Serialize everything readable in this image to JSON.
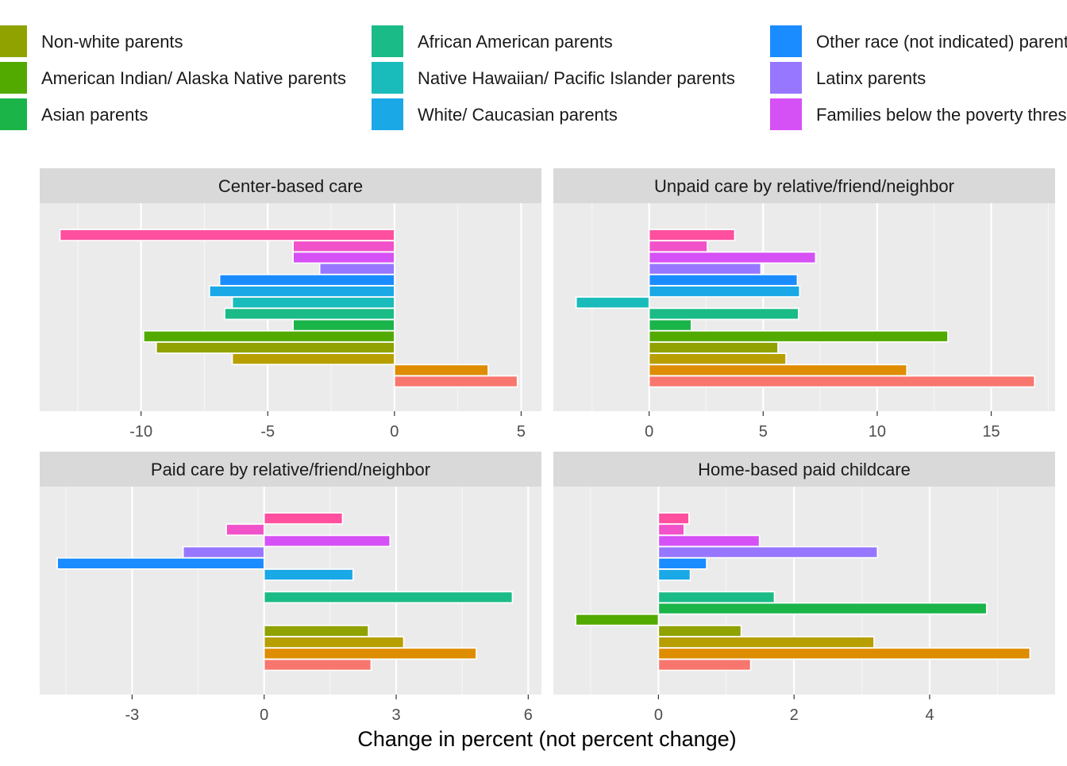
{
  "chart_data": {
    "type": "bar",
    "orientation": "horizontal",
    "xlabel": "Change in percent (not percent change)",
    "ylabel": "",
    "legend": {
      "position": "top",
      "entries": [
        {
          "label": "Non-white parents",
          "color": "#8FA200"
        },
        {
          "label": "American Indian/ Alaska Native parents",
          "color": "#52AA00"
        },
        {
          "label": "Asian parents",
          "color": "#1AB449"
        },
        {
          "label": "African American parents",
          "color": "#1ABB86"
        },
        {
          "label": "Native Hawaiian/ Pacific Islander parents",
          "color": "#1ABBBB"
        },
        {
          "label": "White/ Caucasian parents",
          "color": "#1AA8E7"
        },
        {
          "label": "Other race (not indicated) parents",
          "color": "#1A8CFF"
        },
        {
          "label": "Latinx parents",
          "color": "#9777FF"
        },
        {
          "label": "Families below the poverty threshold",
          "color": "#D651F5"
        }
      ]
    },
    "group_colors": [
      "#F8766D",
      "#DE8C00",
      "#B79F00",
      "#8FA200",
      "#52AA00",
      "#1AB449",
      "#1ABB86",
      "#1ABBBB",
      "#1AA8E7",
      "#1A8CFF",
      "#9777FF",
      "#D651F5",
      "#F151C9",
      "#FF4F9E"
    ],
    "panels": [
      {
        "title": "Center-based care",
        "xlim": [
          -14,
          5.8
        ],
        "ticks": [
          -10,
          -5,
          0,
          5
        ],
        "values": [
          4.85,
          3.7,
          -6.4,
          -9.4,
          -9.9,
          -4.0,
          -6.7,
          -6.4,
          -7.3,
          -6.9,
          -2.95,
          -4.0,
          -4.0,
          -13.2
        ]
      },
      {
        "title": "Unpaid care by relative/friend/neighbor",
        "xlim": [
          -4.2,
          17.8
        ],
        "ticks": [
          0,
          5,
          10,
          15
        ],
        "values": [
          16.9,
          11.3,
          6.0,
          5.65,
          13.1,
          1.85,
          6.55,
          -3.2,
          6.6,
          6.5,
          4.9,
          7.3,
          2.55,
          3.75
        ]
      },
      {
        "title": "Paid care by relative/friend/neighbor",
        "xlim": [
          -5.1,
          6.3
        ],
        "ticks": [
          -3,
          0,
          3,
          6
        ],
        "values": [
          2.43,
          4.82,
          3.17,
          2.37,
          0.0,
          0.0,
          5.64,
          0.0,
          2.02,
          -4.7,
          -1.84,
          2.86,
          -0.86,
          1.78
        ]
      },
      {
        "title": "Home-based paid childcare",
        "xlim": [
          -1.55,
          5.85
        ],
        "ticks": [
          0,
          2,
          4
        ],
        "values": [
          1.36,
          5.48,
          3.18,
          1.22,
          -1.22,
          4.84,
          1.71,
          0.0,
          0.47,
          0.71,
          3.23,
          1.49,
          0.38,
          0.45
        ]
      }
    ]
  }
}
